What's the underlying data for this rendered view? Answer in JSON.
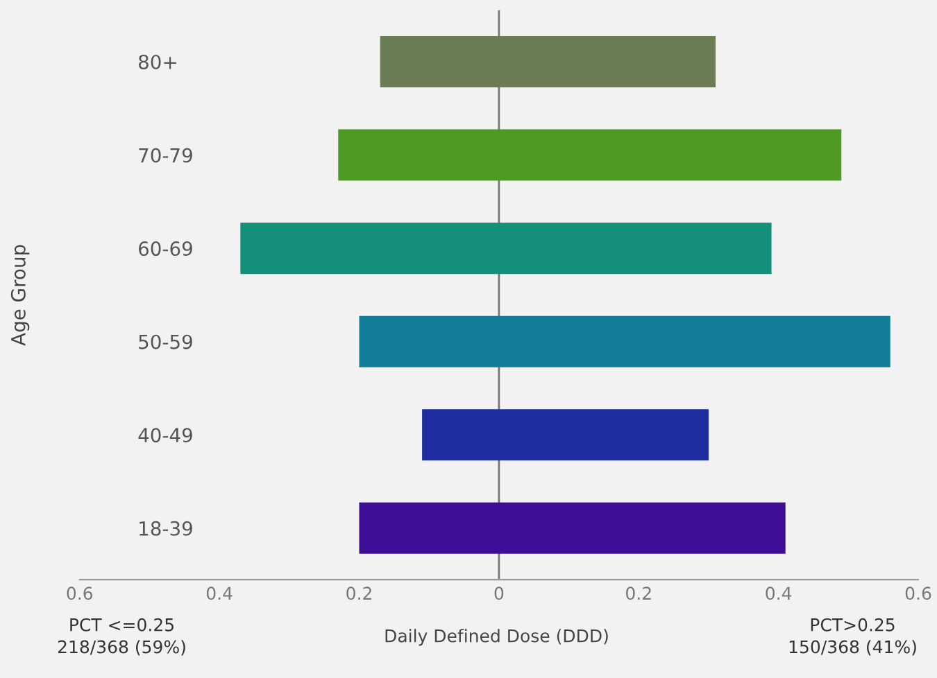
{
  "chart_data": {
    "type": "bar",
    "orientation": "horizontal",
    "ylabel": "Age Group",
    "xlabel": "Daily Defined Dose (DDD)",
    "categories": [
      "80+",
      "70-79",
      "60-69",
      "50-59",
      "40-49",
      "18-39"
    ],
    "base": [
      -0.17,
      -0.23,
      -0.37,
      -0.2,
      -0.11,
      -0.2
    ],
    "values": [
      0.48,
      0.72,
      0.76,
      0.76,
      0.41,
      0.61
    ],
    "colors": [
      "#6a7d55",
      "#4f9a22",
      "#14907a",
      "#137e98",
      "#1e2ea0",
      "#3e0f96"
    ],
    "xlim": [
      -0.6,
      0.6
    ],
    "xticks": [
      {
        "value": -0.6,
        "label": "0.6"
      },
      {
        "value": -0.4,
        "label": "0.4"
      },
      {
        "value": -0.2,
        "label": "0.2"
      },
      0,
      0.2,
      0.4,
      0.6
    ],
    "ref_lines": [
      {
        "axis": "x",
        "value": 0,
        "color": "#777777"
      }
    ],
    "annotations": [
      "PCT <=0.25\n218/368 (59%)",
      "PCT>0.25\n150/368 (41%)"
    ],
    "grid": false
  }
}
